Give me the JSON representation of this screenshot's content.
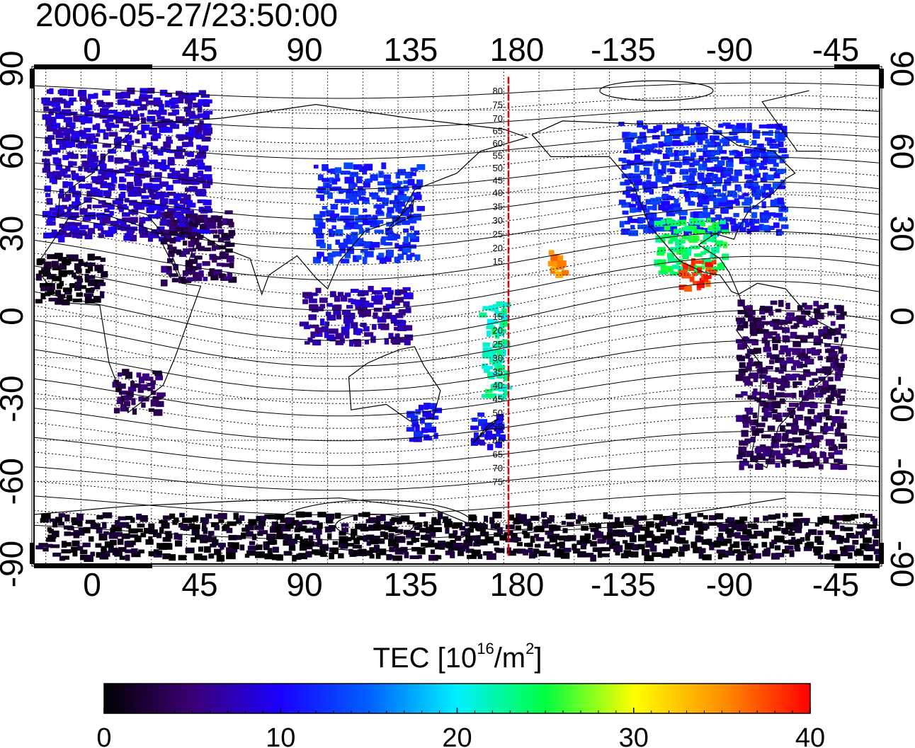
{
  "header": {
    "timestamp": "2006-05-27/23:50:00"
  },
  "map": {
    "projection": "equirectangular",
    "lon_center": 150,
    "x_ticks_bottom": [
      "0",
      "45",
      "90",
      "135",
      "180",
      "-135",
      "-90",
      "-45"
    ],
    "x_ticks_top": [
      "0",
      "45",
      "90",
      "135",
      "180",
      "-135",
      "-90",
      "-45"
    ],
    "y_ticks_left": [
      "90",
      "60",
      "30",
      "0",
      "-30",
      "-60",
      "-90"
    ],
    "y_ticks_right": [
      "90",
      "60",
      "30",
      "0",
      "-30",
      "-60",
      "-90"
    ],
    "grid": true,
    "grid_style": "dotted",
    "meridian_line": {
      "lon": 182,
      "color": "#dd0000"
    },
    "meridian_labels": [
      "80",
      "75",
      "70",
      "65",
      "60",
      "55",
      "50",
      "45",
      "40",
      "35",
      "30",
      "25",
      "20",
      "15",
      "15",
      "20",
      "25",
      "30",
      "35",
      "40",
      "45",
      "50",
      "55",
      "60",
      "65",
      "70",
      "75"
    ],
    "tec_regions": [
      {
        "name": "europe",
        "lon": [
          -15,
          55
        ],
        "lat": [
          28,
          82
        ],
        "tec": 8
      },
      {
        "name": "middle-east",
        "lon": [
          35,
          65
        ],
        "lat": [
          12,
          38
        ],
        "tec": 4
      },
      {
        "name": "west-africa",
        "lon": [
          -18,
          10
        ],
        "lat": [
          5,
          22
        ],
        "tec": 1
      },
      {
        "name": "south-africa",
        "lon": [
          15,
          35
        ],
        "lat": [
          -35,
          -20
        ],
        "tec": 4
      },
      {
        "name": "east-asia",
        "lon": [
          100,
          145
        ],
        "lat": [
          20,
          55
        ],
        "tec": 12
      },
      {
        "name": "indonesia",
        "lon": [
          95,
          140
        ],
        "lat": [
          -10,
          10
        ],
        "tec": 7
      },
      {
        "name": "australia-south",
        "lon": [
          140,
          152
        ],
        "lat": [
          -45,
          -32
        ],
        "tec": 11
      },
      {
        "name": "new-zealand",
        "lon": [
          167,
          180
        ],
        "lat": [
          -48,
          -35
        ],
        "tec": 10
      },
      {
        "name": "pacific-equator",
        "lon": [
          171,
          182
        ],
        "lat": [
          -30,
          5
        ],
        "tec": 22
      },
      {
        "name": "hawaii",
        "lon": [
          -160,
          -153
        ],
        "lat": [
          15,
          25
        ],
        "tec": 35
      },
      {
        "name": "north-america",
        "lon": [
          -130,
          -60
        ],
        "lat": [
          30,
          70
        ],
        "tec": 12
      },
      {
        "name": "usa-south",
        "lon": [
          -115,
          -85
        ],
        "lat": [
          15,
          35
        ],
        "tec": 24
      },
      {
        "name": "mexico",
        "lon": [
          -105,
          -90
        ],
        "lat": [
          10,
          20
        ],
        "tec": 38
      },
      {
        "name": "south-america",
        "lon": [
          -80,
          -35
        ],
        "lat": [
          -55,
          5
        ],
        "tec": 4
      },
      {
        "name": "antarctica",
        "lon": [
          -180,
          180
        ],
        "lat": [
          -88,
          -72
        ],
        "tec": 1
      }
    ]
  },
  "colorbar": {
    "title_pre": "TEC  [10",
    "title_sup1": "16",
    "title_mid": "/m",
    "title_sup2": "2",
    "title_post": "]",
    "ticks": [
      "0",
      "10",
      "20",
      "30",
      "40"
    ],
    "min": 0,
    "max": 40,
    "colors": [
      "#000000",
      "#3b0075",
      "#1a00ff",
      "#0060ff",
      "#00f0ff",
      "#00ff40",
      "#ffff00",
      "#ff9000",
      "#ff0000"
    ]
  }
}
